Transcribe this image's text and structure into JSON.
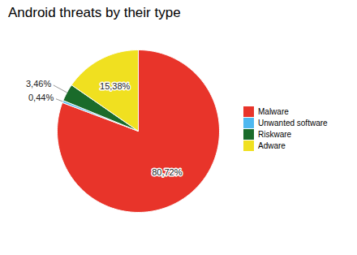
{
  "chart_data": {
    "type": "pie",
    "title": "Android threats by their type",
    "categories": [
      "Malware",
      "Unwanted software",
      "Riskware",
      "Adware"
    ],
    "values": [
      80.72,
      0.44,
      3.46,
      15.38
    ],
    "value_labels": [
      "80,72%",
      "0,44%",
      "3,46%",
      "15,38%"
    ],
    "colors": [
      "#e8342a",
      "#4db8f0",
      "#1a6b2a",
      "#f0e020"
    ],
    "data_labels": true,
    "legend": "right"
  }
}
